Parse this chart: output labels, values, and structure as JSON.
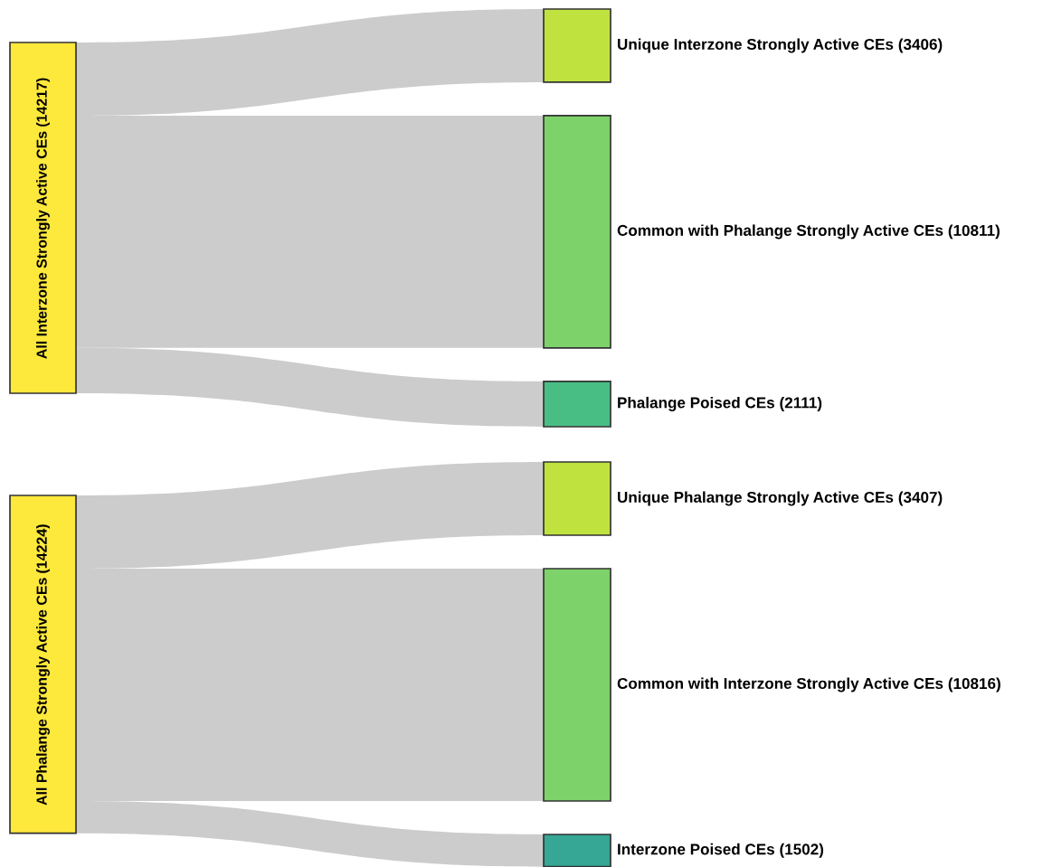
{
  "chart_data": [
    {
      "type": "other",
      "categories": [
        "All Interzone Strongly Active CEs",
        "Unique Interzone Strongly Active CEs",
        "Common with Phalange Strongly Active CEs",
        "Phalange Poised CEs"
      ],
      "values": [
        14217,
        3406,
        10811,
        2111
      ],
      "value_labels": [
        "(14217)",
        "(3406)",
        "(10811)",
        "(2111)"
      ],
      "colors": [
        "#fde83c",
        "#bfe23f",
        "#7dd36a",
        "#48be85"
      ]
    },
    {
      "type": "other",
      "categories": [
        "All Phalange Strongly Active CEs",
        "Unique Phalange Strongly Active CEs",
        "Common with Interzone Strongly Active CEs",
        "Interzone Poised CEs"
      ],
      "values": [
        14224,
        3407,
        10816,
        1502
      ],
      "value_labels": [
        "(14224)",
        "(3407)",
        "(10816)",
        "(1502)"
      ],
      "colors": [
        "#fde83c",
        "#bfe23f",
        "#7dd36a",
        "#35a794"
      ]
    }
  ]
}
